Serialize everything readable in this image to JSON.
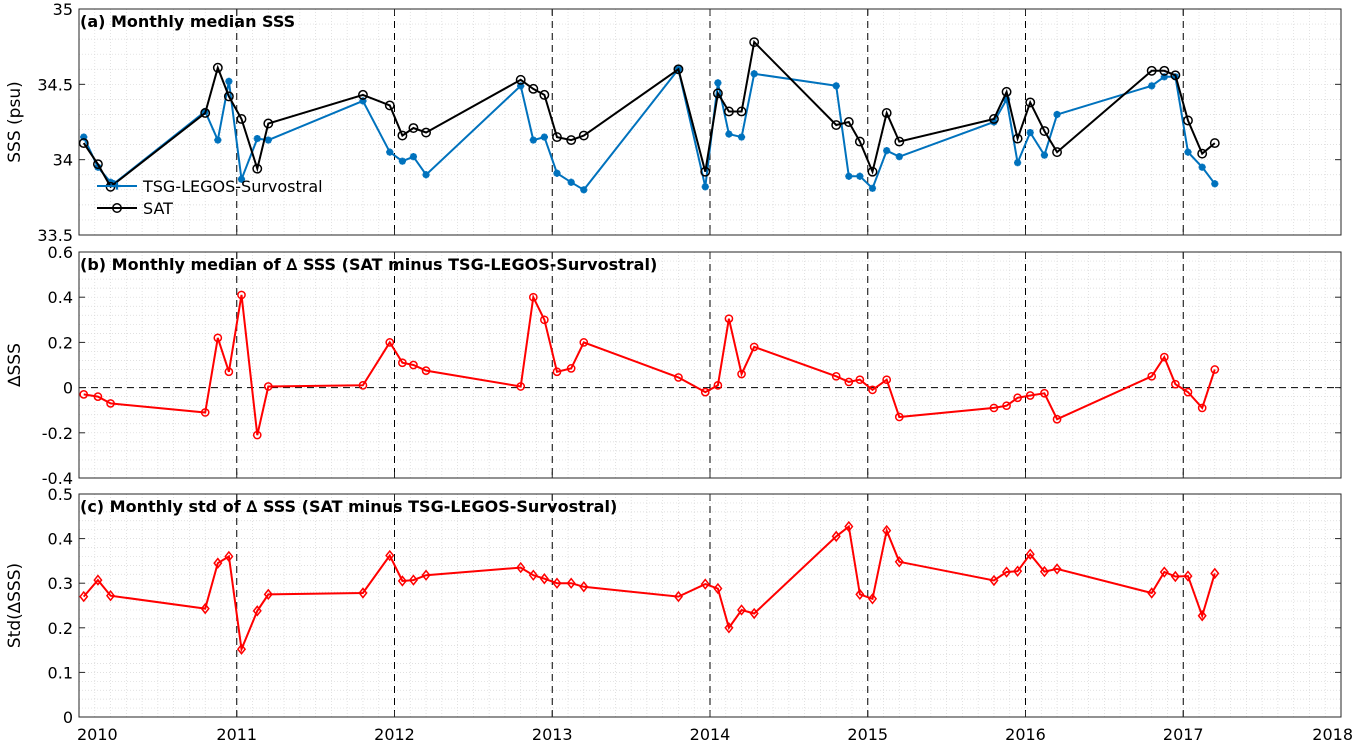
{
  "chart_data": [
    {
      "type": "line",
      "title": "(a) Monthly median SSS",
      "ylabel": "SSS (psu)",
      "xlim": [
        2010,
        2018
      ],
      "ylim": [
        33.5,
        35
      ],
      "yticks": [
        "33.5",
        "34",
        "34.5",
        "35"
      ],
      "grid": "minor dotted",
      "legend": {
        "placement": "middle-left"
      },
      "series": [
        {
          "name": "TSG-LEGOS-Survostral",
          "color": "#0072bd",
          "marker": "asterisk",
          "x": [
            2010.03,
            2010.12,
            2010.2,
            2010.22,
            2010.8,
            2010.88,
            2010.95,
            2011.03,
            2011.13,
            2011.2,
            2011.8,
            2011.97,
            2012.05,
            2012.12,
            2012.2,
            2012.8,
            2012.88,
            2012.95,
            2013.03,
            2013.12,
            2013.2,
            2013.8,
            2013.97,
            2014.05,
            2014.12,
            2014.2,
            2014.28,
            2014.8,
            2014.88,
            2014.95,
            2015.03,
            2015.12,
            2015.2,
            2015.8,
            2015.88,
            2015.95,
            2016.03,
            2016.12,
            2016.2,
            2016.8,
            2016.88,
            2016.95,
            2017.03,
            2017.12,
            2017.2
          ],
          "y": [
            34.15,
            33.95,
            33.85,
            33.84,
            34.32,
            34.13,
            34.52,
            33.87,
            34.14,
            34.13,
            34.39,
            34.05,
            33.99,
            34.02,
            33.9,
            34.49,
            34.13,
            34.15,
            33.91,
            33.85,
            33.8,
            34.6,
            33.82,
            34.51,
            34.17,
            34.15,
            34.57,
            34.49,
            33.89,
            33.89,
            33.81,
            34.06,
            34.02,
            34.25,
            34.4,
            33.98,
            34.18,
            34.03,
            34.3,
            34.49,
            34.55,
            34.55,
            34.05,
            33.95,
            33.84
          ]
        },
        {
          "name": "SAT",
          "color": "#000000",
          "marker": "circle",
          "x": [
            2010.03,
            2010.12,
            2010.2,
            2010.8,
            2010.88,
            2010.95,
            2011.03,
            2011.13,
            2011.2,
            2011.8,
            2011.97,
            2012.05,
            2012.12,
            2012.2,
            2012.8,
            2012.88,
            2012.95,
            2013.03,
            2013.12,
            2013.2,
            2013.8,
            2013.97,
            2014.05,
            2014.12,
            2014.2,
            2014.28,
            2014.8,
            2014.88,
            2014.95,
            2015.03,
            2015.12,
            2015.2,
            2015.8,
            2015.88,
            2015.95,
            2016.03,
            2016.12,
            2016.2,
            2016.8,
            2016.88,
            2016.95,
            2017.03,
            2017.12,
            2017.2
          ],
          "y": [
            34.11,
            33.97,
            33.82,
            34.31,
            34.61,
            34.42,
            34.27,
            33.94,
            34.24,
            34.43,
            34.36,
            34.16,
            34.21,
            34.18,
            34.53,
            34.47,
            34.43,
            34.15,
            34.13,
            34.16,
            34.6,
            33.92,
            34.44,
            34.32,
            34.32,
            34.78,
            34.23,
            34.25,
            34.12,
            33.92,
            34.31,
            34.12,
            34.27,
            34.45,
            34.14,
            34.38,
            34.19,
            34.05,
            34.59,
            34.59,
            34.56,
            34.26,
            34.04,
            34.11
          ]
        }
      ]
    },
    {
      "type": "line",
      "title": "(b) Monthly median of ∆ SSS (SAT minus TSG-LEGOS-Survostral)",
      "ylabel": "∆SSS",
      "xlim": [
        2010,
        2018
      ],
      "ylim": [
        -0.4,
        0.6
      ],
      "yticks": [
        "-0.4",
        "-0.2",
        "0",
        "0.2",
        "0.4",
        "0.6"
      ],
      "zero_line": "dashed",
      "series": [
        {
          "color": "#ff0000",
          "marker": "circle",
          "x": [
            2010.03,
            2010.12,
            2010.2,
            2010.8,
            2010.88,
            2010.95,
            2011.03,
            2011.13,
            2011.2,
            2011.8,
            2011.97,
            2012.05,
            2012.12,
            2012.2,
            2012.8,
            2012.88,
            2012.95,
            2013.03,
            2013.12,
            2013.2,
            2013.8,
            2013.97,
            2014.05,
            2014.12,
            2014.2,
            2014.28,
            2014.8,
            2014.88,
            2014.95,
            2015.03,
            2015.12,
            2015.2,
            2015.8,
            2015.88,
            2015.95,
            2016.03,
            2016.12,
            2016.2,
            2016.8,
            2016.88,
            2016.95,
            2017.03,
            2017.12,
            2017.2
          ],
          "y": [
            -0.03,
            -0.04,
            -0.07,
            -0.11,
            0.22,
            0.07,
            0.41,
            -0.21,
            0.005,
            0.01,
            0.2,
            0.11,
            0.1,
            0.075,
            0.005,
            0.4,
            0.3,
            0.07,
            0.085,
            0.2,
            0.045,
            -0.02,
            0.01,
            0.305,
            0.06,
            0.18,
            0.05,
            0.025,
            0.035,
            -0.01,
            0.035,
            -0.13,
            -0.09,
            -0.08,
            -0.045,
            -0.035,
            -0.025,
            -0.14,
            0.05,
            0.135,
            0.015,
            -0.02,
            -0.09,
            0.08
          ]
        }
      ]
    },
    {
      "type": "line",
      "title": "(c) Monthly std of ∆ SSS (SAT minus TSG-LEGOS-Survostral)",
      "ylabel": "Std(∆SSS)",
      "xlim": [
        2010,
        2018
      ],
      "ylim": [
        0,
        0.5
      ],
      "yticks": [
        "0",
        "0.1",
        "0.2",
        "0.3",
        "0.4",
        "0.5"
      ],
      "series": [
        {
          "color": "#ff0000",
          "marker": "diamond",
          "x": [
            2010.03,
            2010.12,
            2010.2,
            2010.8,
            2010.88,
            2010.95,
            2011.03,
            2011.13,
            2011.2,
            2011.8,
            2011.97,
            2012.05,
            2012.12,
            2012.2,
            2012.8,
            2012.88,
            2012.95,
            2013.03,
            2013.12,
            2013.2,
            2013.8,
            2013.97,
            2014.05,
            2014.12,
            2014.2,
            2014.28,
            2014.8,
            2014.88,
            2014.95,
            2015.03,
            2015.12,
            2015.2,
            2015.8,
            2015.88,
            2015.95,
            2016.03,
            2016.12,
            2016.2,
            2016.8,
            2016.88,
            2016.95,
            2017.03,
            2017.12,
            2017.2
          ],
          "y": [
            0.27,
            0.307,
            0.272,
            0.243,
            0.345,
            0.36,
            0.152,
            0.238,
            0.275,
            0.278,
            0.362,
            0.305,
            0.307,
            0.318,
            0.335,
            0.318,
            0.31,
            0.3,
            0.3,
            0.292,
            0.27,
            0.298,
            0.288,
            0.2,
            0.24,
            0.232,
            0.405,
            0.427,
            0.275,
            0.265,
            0.418,
            0.348,
            0.306,
            0.325,
            0.327,
            0.365,
            0.326,
            0.332,
            0.278,
            0.325,
            0.315,
            0.316,
            0.227,
            0.322
          ]
        }
      ]
    }
  ],
  "x_axis": {
    "ticks": [
      "2010",
      "2011",
      "2012",
      "2013",
      "2014",
      "2015",
      "2016",
      "2017",
      "2018"
    ],
    "year_lines": "dashed"
  }
}
